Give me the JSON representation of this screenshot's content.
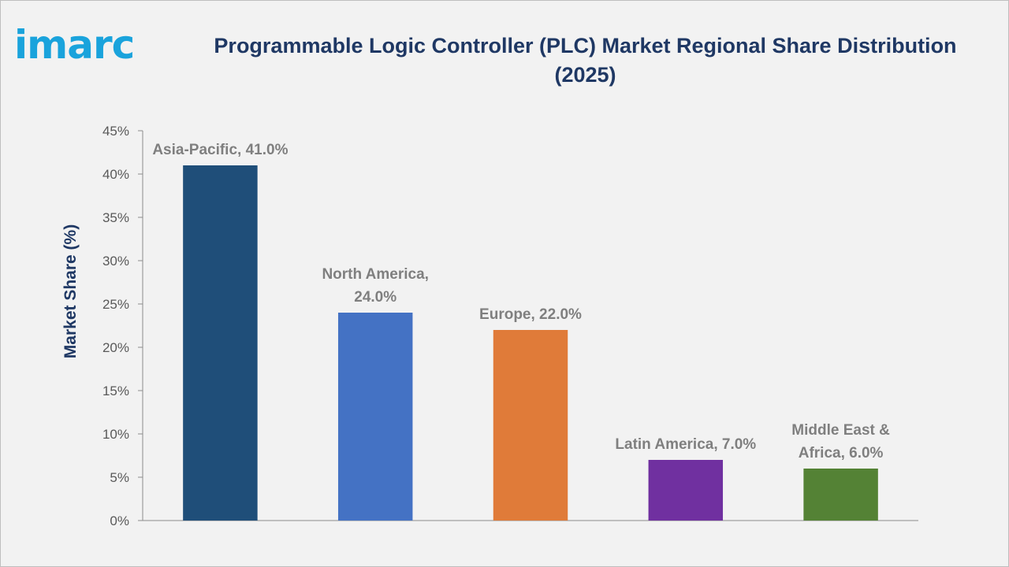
{
  "logo": {
    "text": "imarc"
  },
  "title": "Programmable Logic Controller (PLC) Market Regional Share Distribution (2025)",
  "chart_data": {
    "type": "bar",
    "title": "Programmable Logic Controller (PLC) Market Regional Share Distribution (2025)",
    "xlabel": "",
    "ylabel": "Market Share (%)",
    "ylim": [
      0,
      45
    ],
    "yticks": [
      "0%",
      "5%",
      "10%",
      "15%",
      "20%",
      "25%",
      "30%",
      "35%",
      "40%",
      "45%"
    ],
    "grid": false,
    "legend": "none",
    "categories": [
      "Asia-Pacific",
      "North America",
      "Europe",
      "Latin America",
      "Middle East & Africa"
    ],
    "values": [
      41.0,
      24.0,
      22.0,
      7.0,
      6.0
    ],
    "colors": [
      "#1f4e79",
      "#4472c4",
      "#e07b39",
      "#7030a0",
      "#548235"
    ],
    "data_labels": [
      [
        "Asia-Pacific, 41.0%"
      ],
      [
        "North America,",
        "24.0%"
      ],
      [
        "Europe, 22.0%"
      ],
      [
        "Latin America, 7.0%"
      ],
      [
        "Middle East &",
        "Africa, 6.0%"
      ]
    ]
  }
}
